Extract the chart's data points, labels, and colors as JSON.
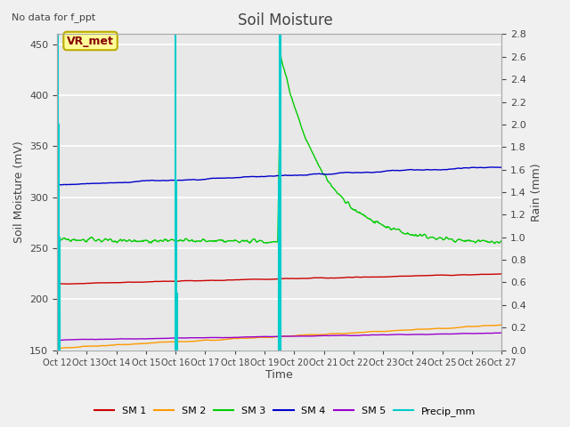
{
  "title": "Soil Moisture",
  "subtitle": "No data for f_ppt",
  "ylabel_left": "Soil Moisture (mV)",
  "ylabel_right": "Rain (mm)",
  "xlabel": "Time",
  "ylim_left": [
    150,
    460
  ],
  "ylim_right": [
    0.0,
    2.8
  ],
  "bg_color": "#e8e8e8",
  "fig_color": "#f0f0f0",
  "grid_color": "#ffffff",
  "annotation_text": "VR_met",
  "x_tick_labels": [
    "Oct 12",
    "Oct 13",
    "Oct 14",
    "Oct 15",
    "Oct 16",
    "Oct 17",
    "Oct 18",
    "Oct 19",
    "Oct 20",
    "Oct 21",
    "Oct 22",
    "Oct 23",
    "Oct 24",
    "Oct 25",
    "Oct 26",
    "Oct 27"
  ],
  "yticks_left": [
    150,
    200,
    250,
    300,
    350,
    400,
    450
  ],
  "yticks_right": [
    0.0,
    0.2,
    0.4,
    0.6,
    0.8,
    1.0,
    1.2,
    1.4,
    1.6,
    1.8,
    2.0,
    2.2,
    2.4,
    2.6,
    2.8
  ],
  "series": {
    "SM1": {
      "color": "#cc0000",
      "label": "SM 1"
    },
    "SM2": {
      "color": "#ff9900",
      "label": "SM 2"
    },
    "SM3": {
      "color": "#00cc00",
      "label": "SM 3"
    },
    "SM4": {
      "color": "#0000cc",
      "label": "SM 4"
    },
    "SM5": {
      "color": "#9900cc",
      "label": "SM 5"
    },
    "Precip": {
      "color": "#00cccc",
      "label": "Precip_mm"
    }
  }
}
